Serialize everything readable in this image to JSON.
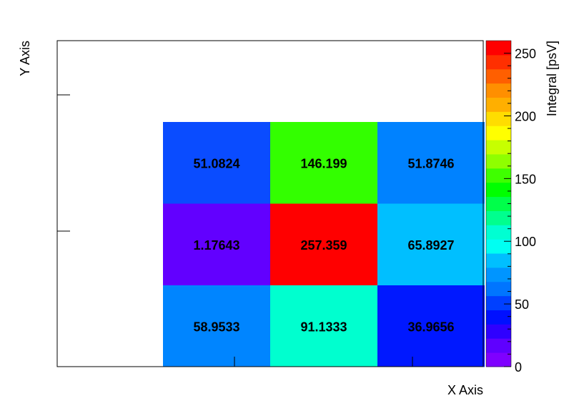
{
  "chart_data": {
    "type": "heatmap",
    "xlabel": "X Axis",
    "ylabel": "Y Axis",
    "zlabel": "Integral [psV]",
    "z_ticks": [
      "0",
      "50",
      "100",
      "150",
      "200",
      "250"
    ],
    "z_range": [
      0,
      260
    ],
    "colorbar_colors": [
      "#7f00ff",
      "#5f00ff",
      "#2f00ff",
      "#0010ff",
      "#0040ff",
      "#0075ff",
      "#0095ff",
      "#00bfff",
      "#00fff2",
      "#00ffd2",
      "#00ff8e",
      "#00ff4a",
      "#00ff00",
      "#3fff00",
      "#8fff00",
      "#c7ff00",
      "#ffff00",
      "#ffdd00",
      "#ffaf00",
      "#ff8f00",
      "#ff5f00",
      "#ff2f00",
      "#ff0000"
    ],
    "grid": false,
    "cells": [
      {
        "row": 0,
        "col": 0,
        "value": 51.0824,
        "label": "51.0824",
        "color": "#0a4cff"
      },
      {
        "row": 0,
        "col": 1,
        "value": 146.199,
        "label": "146.199",
        "color": "#33ff00"
      },
      {
        "row": 0,
        "col": 2,
        "value": 51.8746,
        "label": "51.8746",
        "color": "#0082ff"
      },
      {
        "row": 1,
        "col": 0,
        "value": 1.17643,
        "label": "1.17643",
        "color": "#6200ff"
      },
      {
        "row": 1,
        "col": 1,
        "value": 257.359,
        "label": "257.359",
        "color": "#ff0000"
      },
      {
        "row": 1,
        "col": 2,
        "value": 65.8927,
        "label": "65.8927",
        "color": "#00bfff"
      },
      {
        "row": 2,
        "col": 0,
        "value": 58.9533,
        "label": "58.9533",
        "color": "#0085ff"
      },
      {
        "row": 2,
        "col": 1,
        "value": 91.1333,
        "label": "91.1333",
        "color": "#00ffcf"
      },
      {
        "row": 2,
        "col": 2,
        "value": 36.9656,
        "label": "36.9656",
        "color": "#0018ff"
      }
    ]
  }
}
